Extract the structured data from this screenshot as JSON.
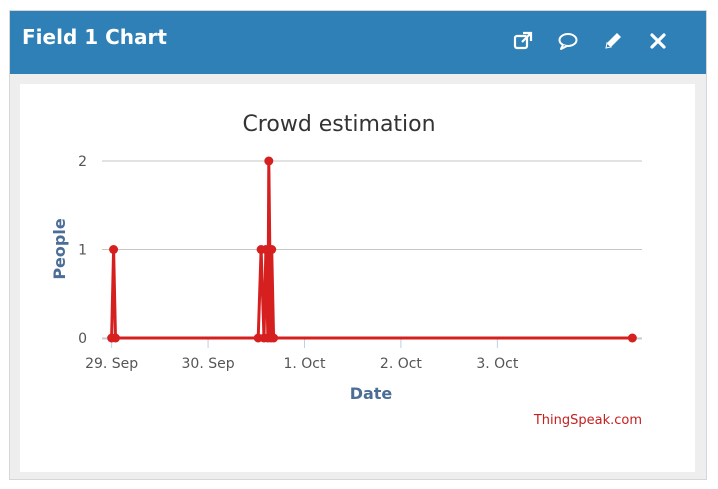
{
  "widget": {
    "title": "Field 1 Chart",
    "tools": [
      {
        "name": "open-external-icon"
      },
      {
        "name": "comment-icon"
      },
      {
        "name": "edit-pencil-icon"
      },
      {
        "name": "close-icon"
      }
    ],
    "header_color": "#2e80b7"
  },
  "chart_data": {
    "type": "line",
    "title": "Crowd estimation",
    "xlabel": "Date",
    "ylabel": "People",
    "credit": "ThingSpeak.com",
    "x_ticks": [
      "29. Sep",
      "30. Sep",
      "1. Oct",
      "2. Oct",
      "3. Oct"
    ],
    "y_ticks": [
      0,
      1,
      2
    ],
    "ylim": [
      0,
      2
    ],
    "grid": true,
    "color": "#d62020",
    "series": [
      {
        "x": [
          0.0,
          0.02,
          0.04,
          1.52,
          1.55,
          1.58,
          1.6,
          1.62,
          1.63,
          1.65,
          1.66,
          1.68,
          5.4
        ],
        "values": [
          0,
          1,
          0,
          0,
          1,
          0,
          1,
          0,
          2,
          0,
          1,
          0,
          0
        ]
      }
    ]
  }
}
